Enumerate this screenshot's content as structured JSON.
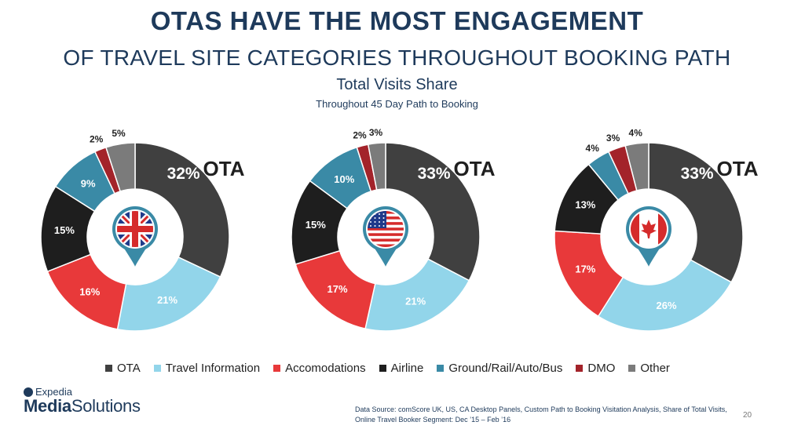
{
  "header": {
    "title": "OTAS HAVE THE MOST ENGAGEMENT",
    "title2": "OF TRAVEL SITE CATEGORIES THROUGHOUT BOOKING PATH",
    "subtitle": "Total Visits Share",
    "subsubtitle": "Throughout 45 Day Path to Booking"
  },
  "chart_data": [
    {
      "type": "pie",
      "country_flag": "uk-flag-icon",
      "callout": "OTA",
      "categories": [
        "OTA",
        "Travel Information",
        "Accomodations",
        "Airline",
        "Ground/Rail/Auto/Bus",
        "DMO",
        "Other"
      ],
      "values": [
        32,
        21,
        16,
        15,
        9,
        2,
        5
      ],
      "labels": [
        "32%",
        "21%",
        "16%",
        "15%",
        "9%",
        "2%",
        "5%"
      ]
    },
    {
      "type": "pie",
      "country_flag": "us-flag-icon",
      "callout": "OTA",
      "categories": [
        "OTA",
        "Travel Information",
        "Accomodations",
        "Airline",
        "Ground/Rail/Auto/Bus",
        "DMO",
        "Other"
      ],
      "values": [
        33,
        21,
        17,
        15,
        10,
        2,
        3
      ],
      "labels": [
        "33%",
        "21%",
        "17%",
        "15%",
        "10%",
        "2%",
        "3%"
      ]
    },
    {
      "type": "pie",
      "country_flag": "canada-flag-icon",
      "callout": "OTA",
      "categories": [
        "OTA",
        "Travel Information",
        "Accomodations",
        "Airline",
        "Ground/Rail/Auto/Bus",
        "DMO",
        "Other"
      ],
      "values": [
        33,
        26,
        17,
        13,
        4,
        3,
        4
      ],
      "labels": [
        "33%",
        "26%",
        "17%",
        "13%",
        "4%",
        "3%",
        "4%"
      ]
    }
  ],
  "legend": [
    {
      "label": "OTA",
      "color": "#404040"
    },
    {
      "label": "Travel Information",
      "color": "#92d5ea"
    },
    {
      "label": "Accomodations",
      "color": "#e8393a"
    },
    {
      "label": "Airline",
      "color": "#1e1e1e"
    },
    {
      "label": "Ground/Rail/Auto/Bus",
      "color": "#3a8aa6"
    },
    {
      "label": "DMO",
      "color": "#a3232a"
    },
    {
      "label": "Other",
      "color": "#7b7b7b"
    }
  ],
  "logo": {
    "top": "Expedia",
    "bottom_a": "Media",
    "bottom_b": "Solutions"
  },
  "footer": {
    "source_line1": "Data Source: comScore UK, US, CA Desktop Panels, Custom Path to Booking Visitation Analysis, Share of Total Visits,",
    "source_line2": "Online Travel Booker Segment: Dec ’15 – Feb ’16",
    "page_number": "20"
  }
}
